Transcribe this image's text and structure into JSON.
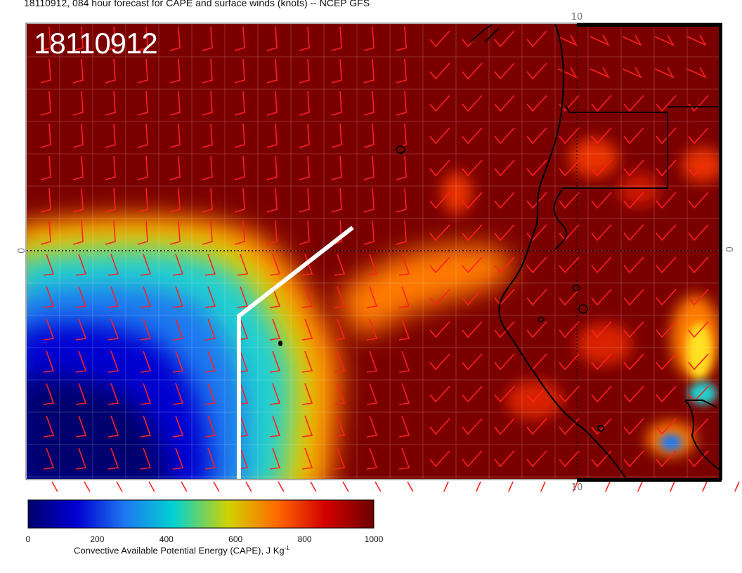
{
  "title": "18110912, 084 hour forecast for CAPE and surface winds (knots) -- NCEP GFS",
  "stamp": "18110912",
  "axes": {
    "lat_label_left": "0",
    "lat_label_right": "0",
    "lon_label_top": "10",
    "lon_label_bottom": "10"
  },
  "colorbar": {
    "title_main": "Convective Available Potential Energy (CAPE), J Kg",
    "title_sup": "-1",
    "ticks": [
      "0",
      "200",
      "400",
      "600",
      "800",
      "1000"
    ],
    "colors": [
      "#00006e",
      "#0000d2",
      "#1e78f0",
      "#00d2d2",
      "#d2d200",
      "#ff6a00",
      "#d20000",
      "#6e0000"
    ]
  },
  "colors": {
    "background_field": "#7a0000",
    "wind_barb": "#ff2020",
    "coastline": "#000000",
    "track": "#ffffff"
  }
}
